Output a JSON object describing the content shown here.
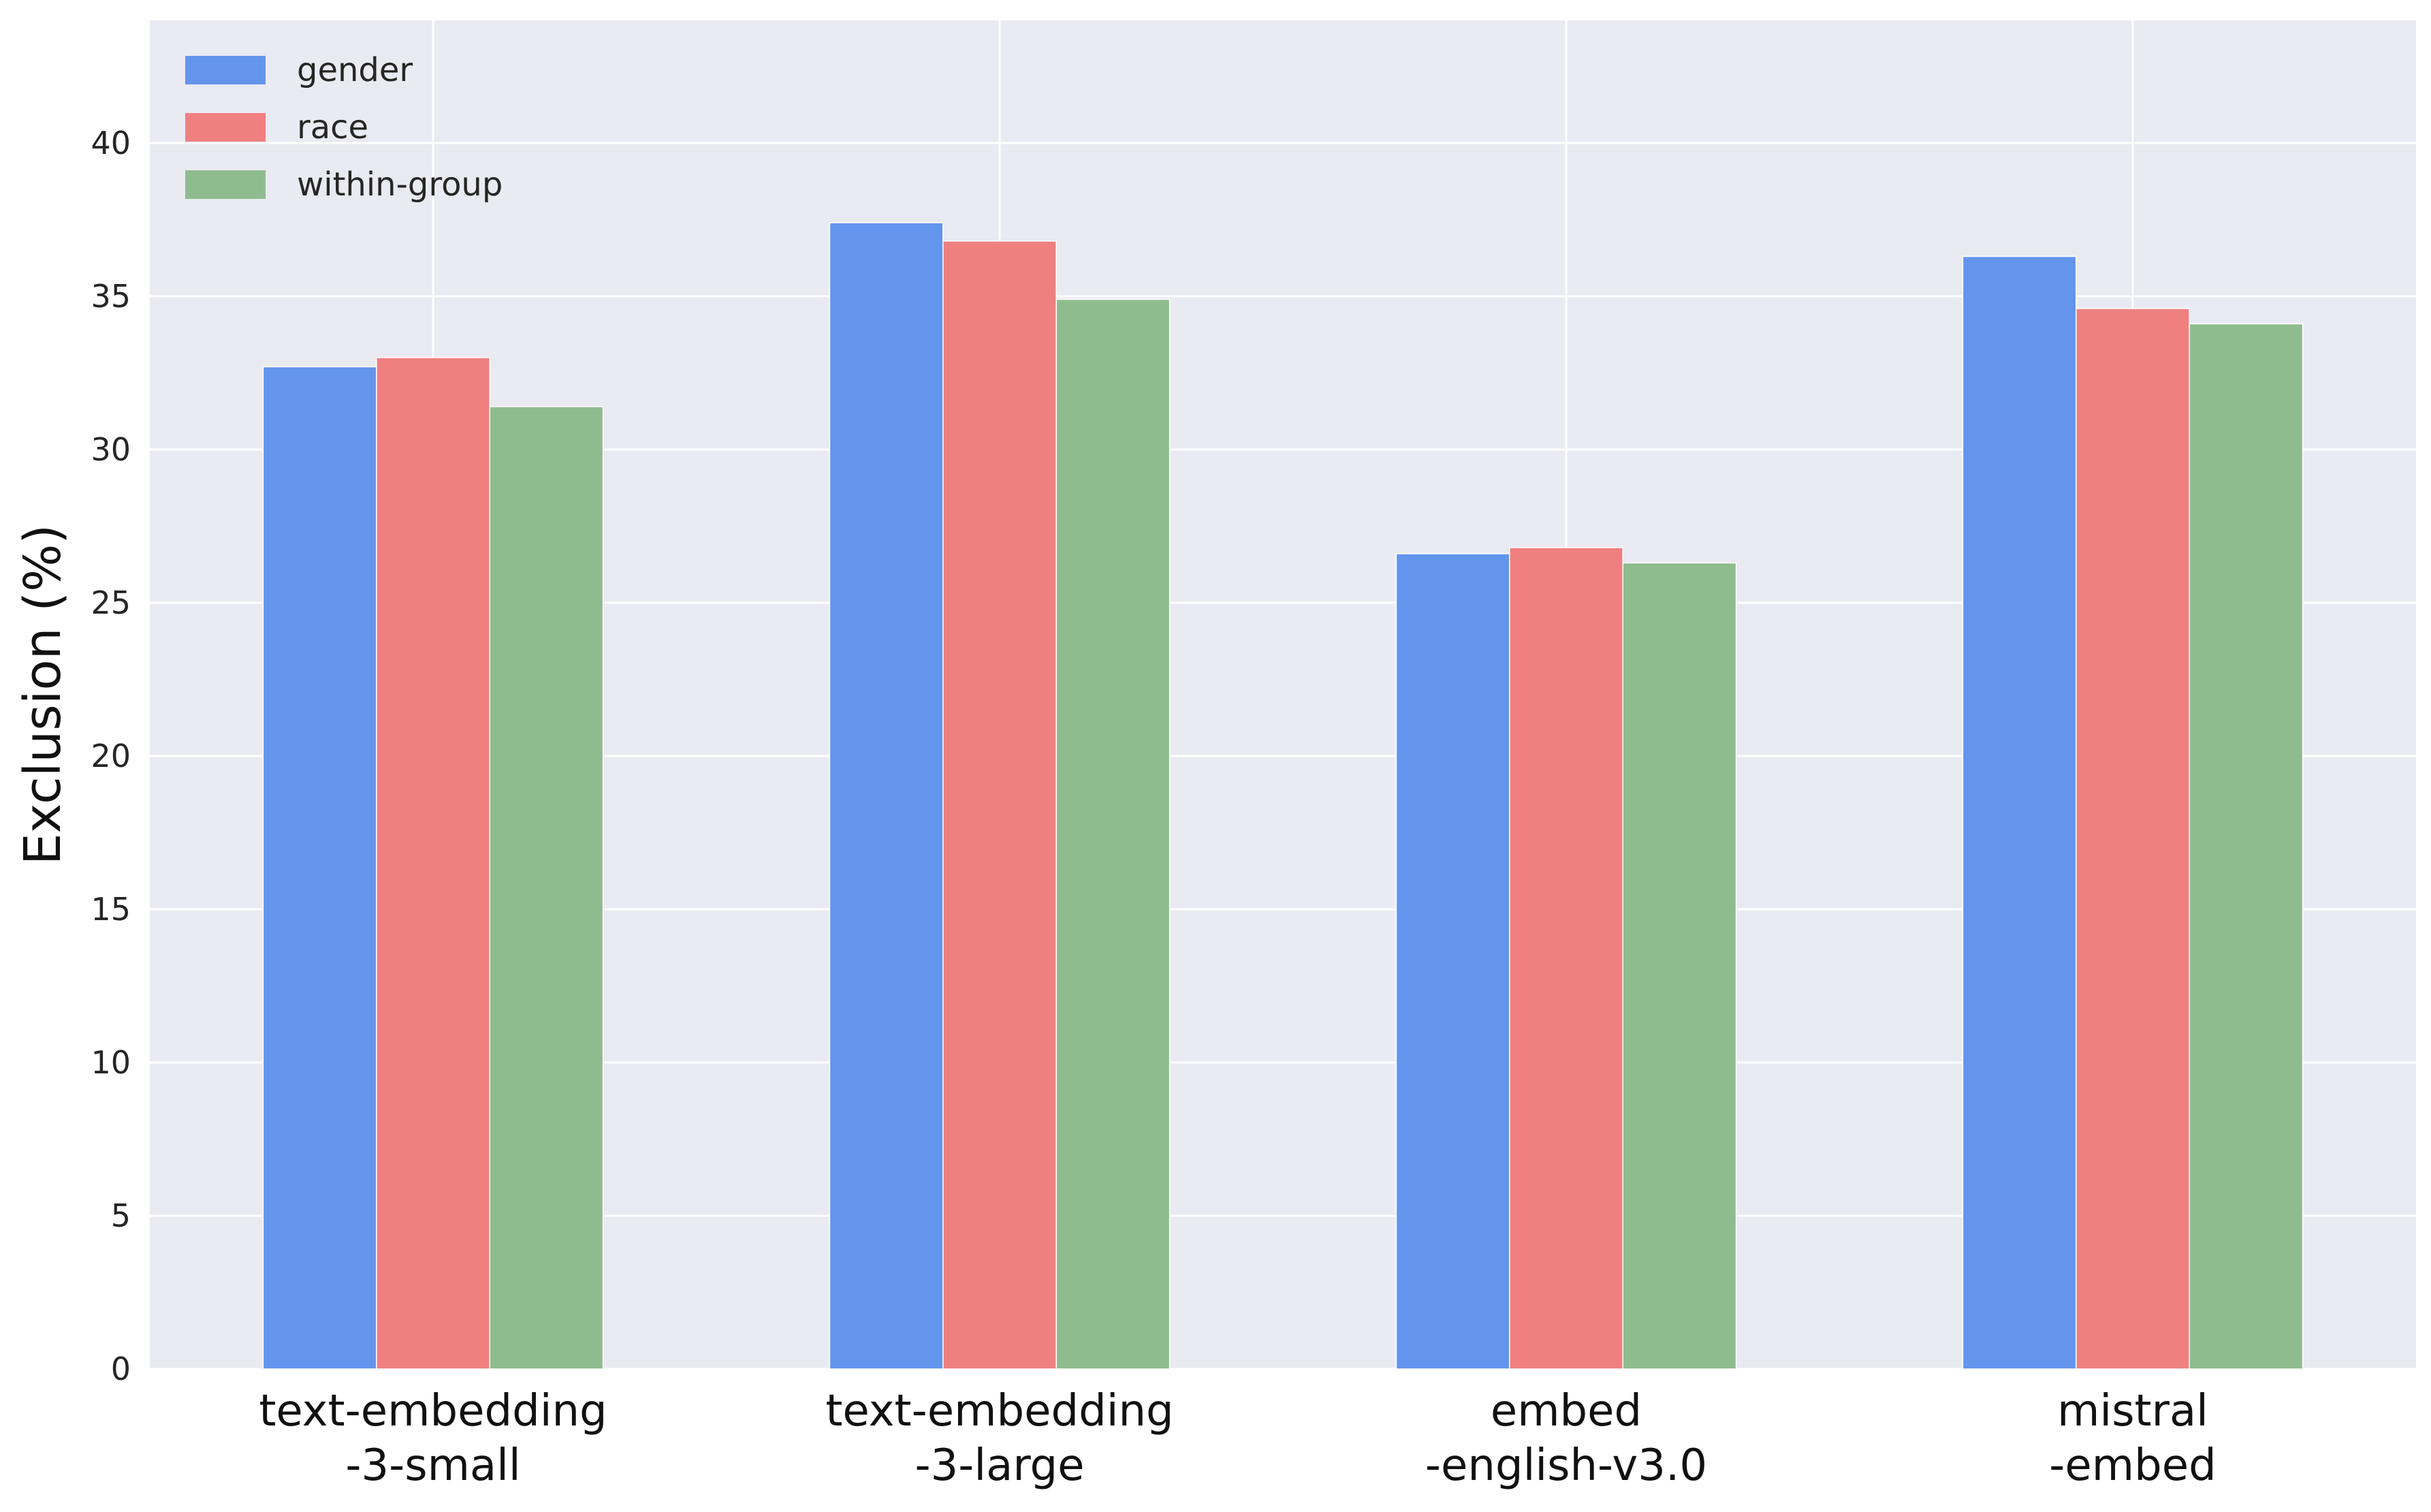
{
  "chart_data": {
    "type": "bar",
    "title": "",
    "xlabel": "",
    "ylabel": "Exclusion (%)",
    "ylim": [
      0,
      44
    ],
    "yticks": [
      "0",
      "5",
      "10",
      "15",
      "20",
      "25",
      "30",
      "35",
      "40"
    ],
    "grid": true,
    "legend_position": "top-left",
    "categories": [
      [
        "text-embedding",
        "-3-small"
      ],
      [
        "text-embedding",
        "-3-large"
      ],
      [
        "embed",
        "-english-v3.0"
      ],
      [
        "mistral",
        "-embed"
      ]
    ],
    "series": [
      {
        "name": "gender",
        "color": "#6495ED",
        "values": [
          32.7,
          37.4,
          26.6,
          36.3
        ]
      },
      {
        "name": "race",
        "color": "#F08080",
        "values": [
          33.0,
          36.8,
          26.8,
          34.6
        ]
      },
      {
        "name": "within-group",
        "color": "#8FBC8F",
        "values": [
          31.4,
          34.9,
          26.3,
          34.1
        ]
      }
    ],
    "background": "#EAEAF2",
    "gridline_color": "#FFFFFF"
  }
}
